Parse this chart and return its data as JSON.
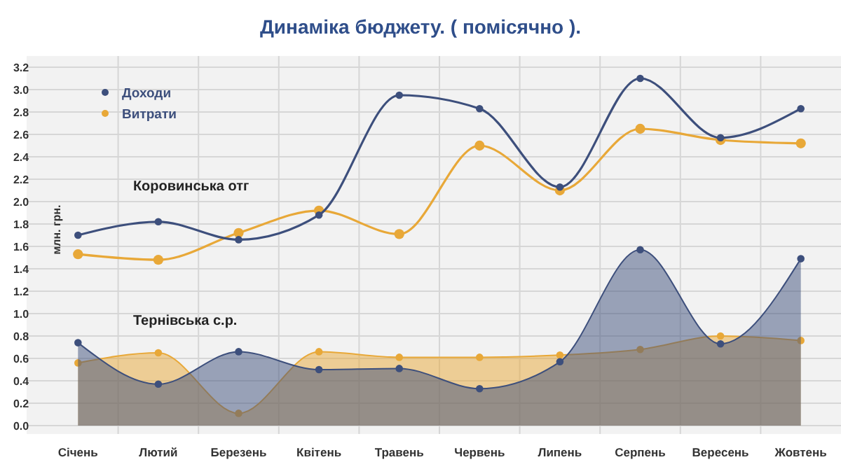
{
  "chart_data": {
    "type": "line",
    "title": "Динаміка бюджету. ( помісячно ).",
    "ylabel": "млн. грн.",
    "categories": [
      "Січень",
      "Лютий",
      "Березень",
      "Квітень",
      "Травень",
      "Червень",
      "Липень",
      "Серпень",
      "Вересень",
      "Жовтень"
    ],
    "series": [
      {
        "name": "Доходи",
        "color": "#3d4f7c",
        "values": [
          1.7,
          1.82,
          1.66,
          1.88,
          2.95,
          2.83,
          2.13,
          3.1,
          2.57,
          2.83
        ]
      },
      {
        "name": "Витрати",
        "color": "#e8a838",
        "values": [
          1.53,
          1.48,
          1.72,
          1.92,
          1.71,
          2.5,
          2.1,
          2.65,
          2.55,
          2.52
        ]
      },
      {
        "color": "#3d4f7c",
        "type": "area",
        "values": [
          0.74,
          0.37,
          0.66,
          0.5,
          0.51,
          0.33,
          0.57,
          1.57,
          0.73,
          1.49
        ]
      },
      {
        "color": "#e8a838",
        "type": "area",
        "values": [
          0.56,
          0.65,
          0.11,
          0.66,
          0.61,
          0.61,
          0.63,
          0.68,
          0.8,
          0.76
        ]
      }
    ],
    "annotations": [
      "Коровинська отг",
      "Тернівська с.р."
    ],
    "ylim": [
      0,
      3.2
    ],
    "yticks": [
      {
        "value": 0,
        "label": "0.0"
      },
      0.2,
      0.4,
      0.6,
      0.8,
      {
        "value": 1,
        "label": "1.0"
      },
      1.2,
      1.4,
      1.6,
      1.8,
      {
        "value": 2,
        "label": "2.0"
      },
      2.2,
      2.4,
      2.6,
      2.8,
      {
        "value": 3,
        "label": "3.0"
      },
      3.2
    ],
    "grid": true,
    "legend": "top left",
    "marker": "circle",
    "line_style": "solid"
  }
}
